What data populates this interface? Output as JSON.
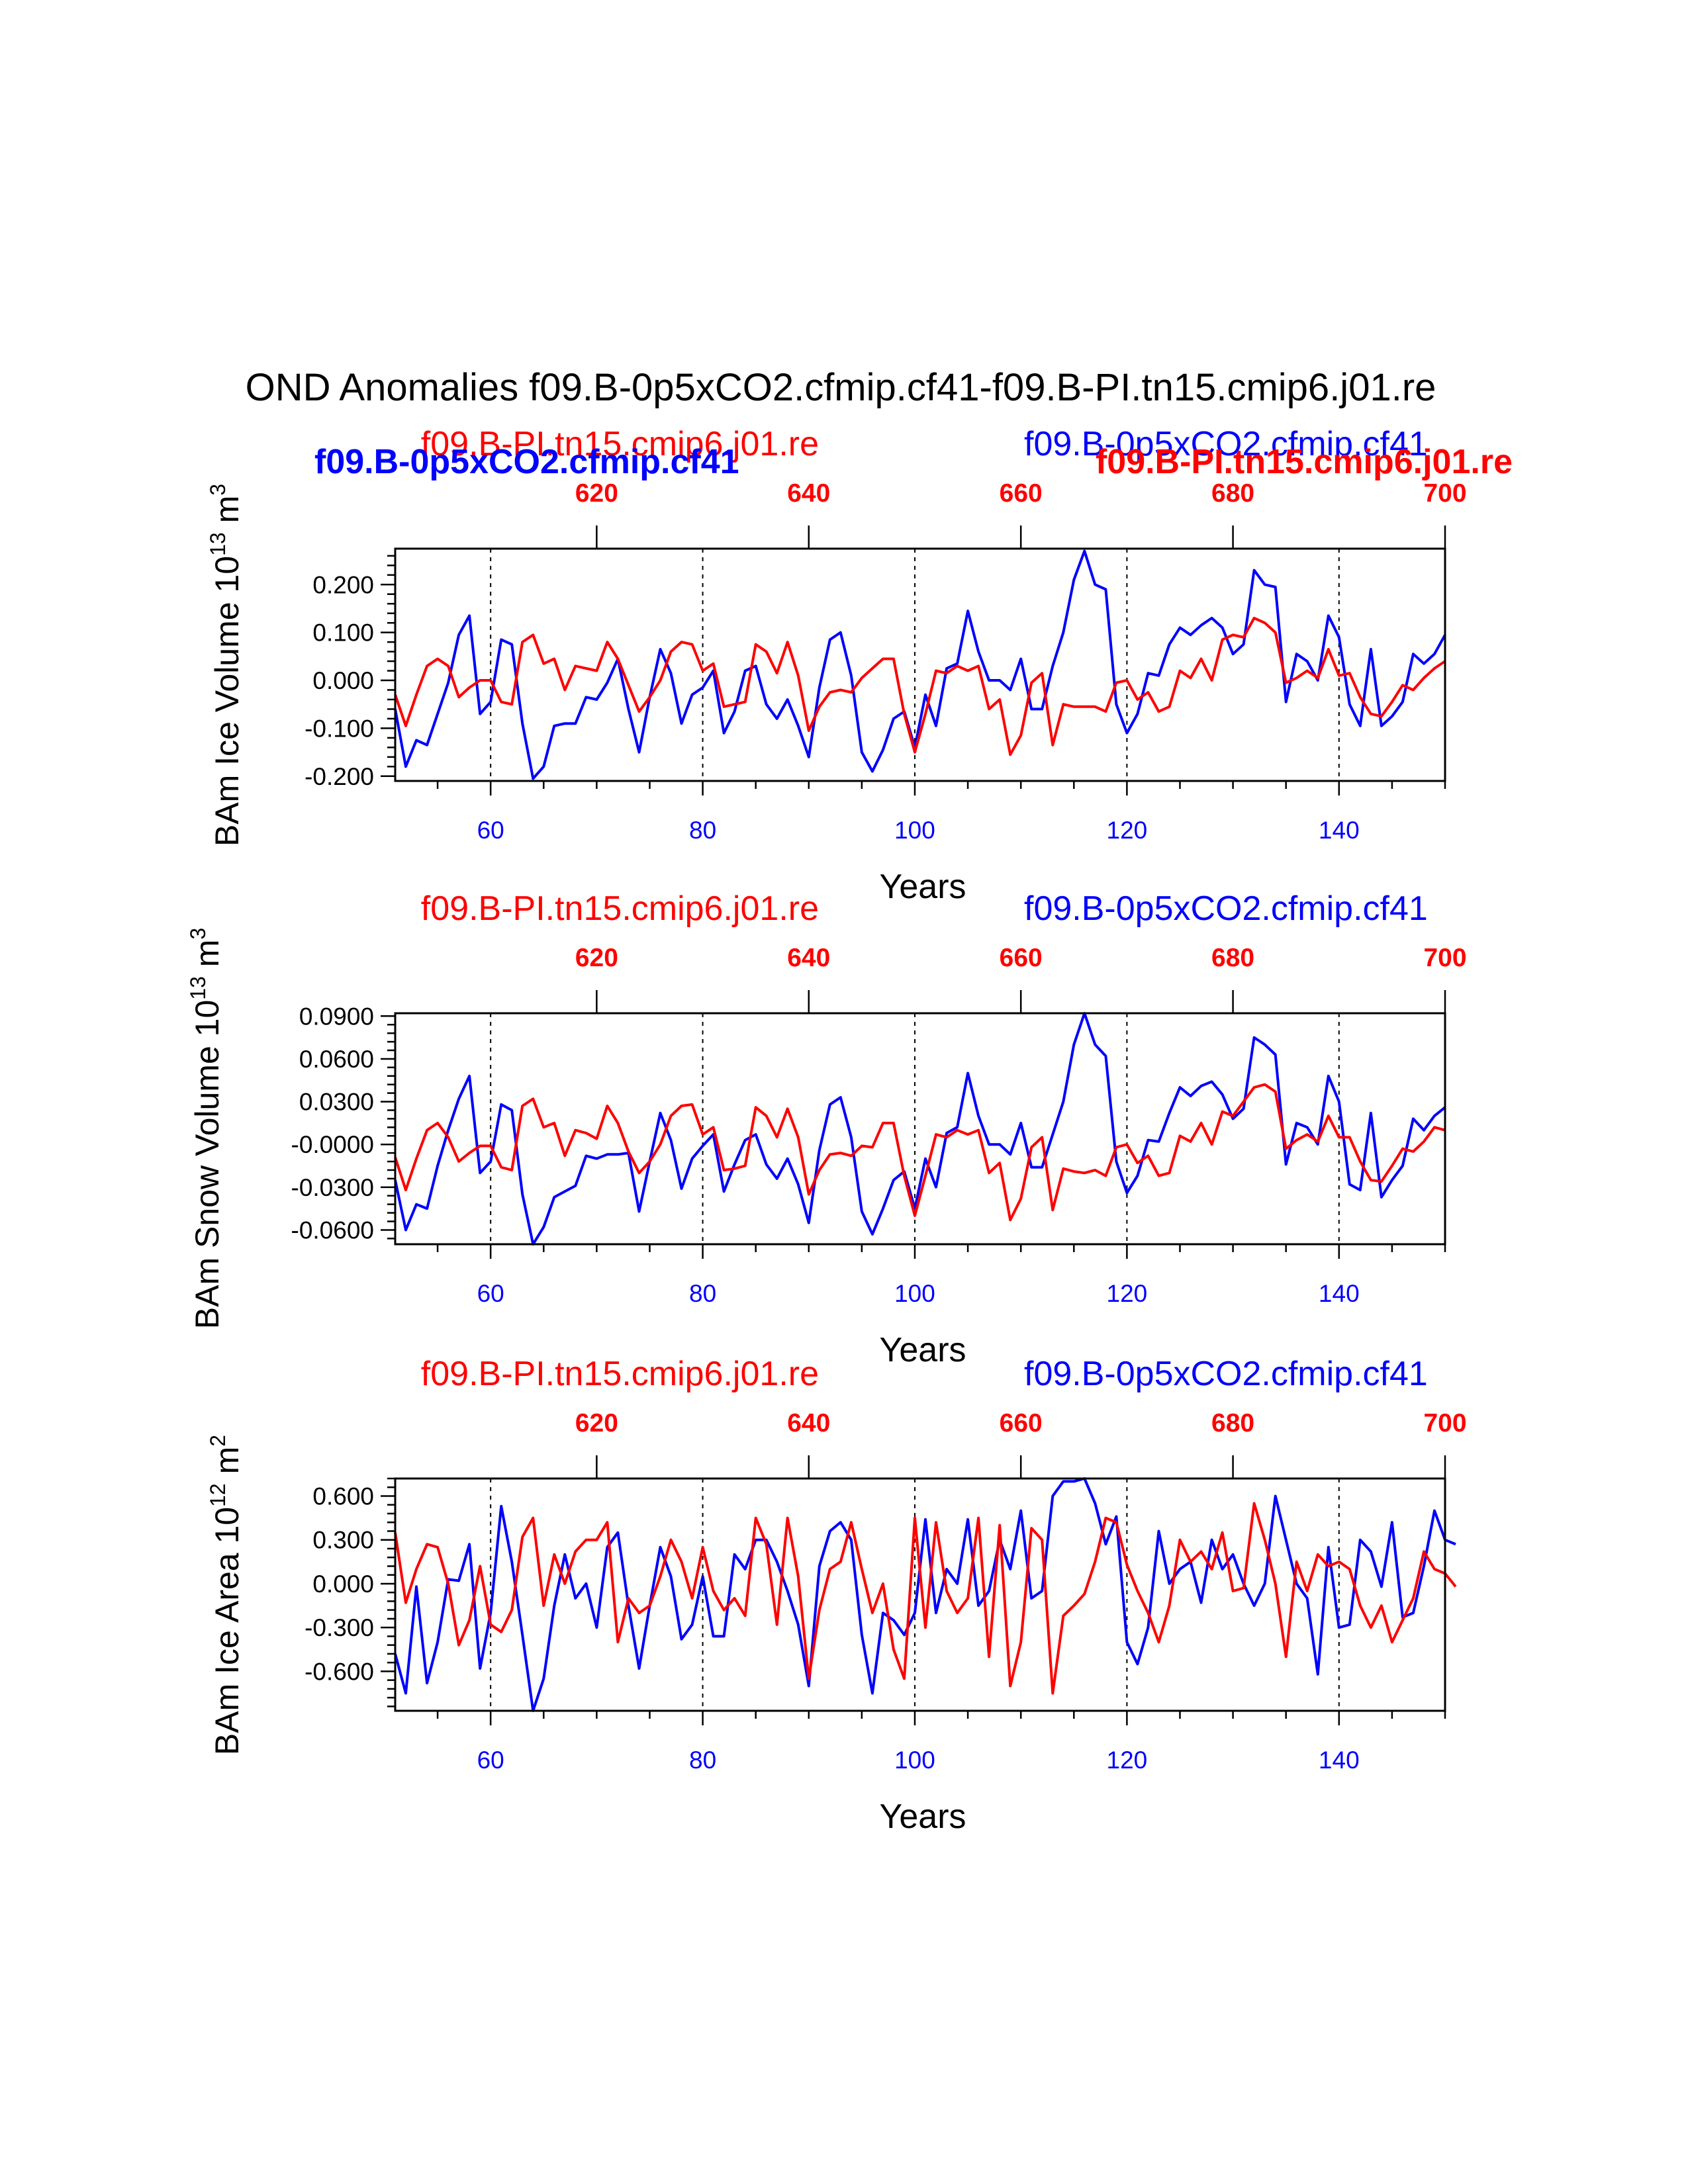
{
  "title": "OND Anomalies f09.B-0p5xCO2.cfmip.cf41-f09.B-PI.tn15.cmip6.j01.re",
  "legend": {
    "red_name": "f09.B-PI.tn15.cmip6.j01.re",
    "blue_name": "f09.B-0p5xCO2.cfmip.cf41"
  },
  "overlay_labels": {
    "blue": "f09.B-0p5xCO2.cfmip.cf41",
    "red": "f09.B-PI.tn15.cmip6.j01.re"
  },
  "colors": {
    "blue": "#0000ff",
    "red": "#ff0000",
    "axis": "#000000"
  },
  "chart_data": [
    {
      "type": "line",
      "ylabel": "BAm Ice Volume 10",
      "ylabel_exp": "13",
      "ylabel_unit": " m",
      "ylabel_unit_exp": "3",
      "xlabel": "Years",
      "xlim": [
        51,
        150
      ],
      "top_xlim": [
        601,
        700
      ],
      "ylim": [
        -0.21,
        0.275
      ],
      "yticks": [
        -0.2,
        -0.1,
        0.0,
        0.1,
        0.2
      ],
      "ytick_labels": [
        "-0.200",
        "-0.100",
        "0.000",
        "0.100",
        "0.200"
      ],
      "xticks": [
        60,
        80,
        100,
        120,
        140
      ],
      "xtick_labels": [
        "60",
        "80",
        "100",
        "120",
        "140"
      ],
      "top_xticks": [
        620,
        640,
        660,
        680,
        700
      ],
      "top_xtick_labels": [
        "620",
        "640",
        "660",
        "680",
        "700"
      ],
      "series": [
        {
          "name": "f09.B-0p5xCO2.cfmip.cf41",
          "color": "#0000ff",
          "x_start": 51,
          "values": [
            -0.06,
            -0.18,
            -0.125,
            -0.135,
            -0.07,
            -0.005,
            0.095,
            0.135,
            -0.07,
            -0.045,
            0.085,
            0.075,
            -0.09,
            -0.205,
            -0.18,
            -0.095,
            -0.09,
            -0.09,
            -0.035,
            -0.04,
            -0.005,
            0.045,
            -0.06,
            -0.15,
            -0.035,
            0.065,
            0.015,
            -0.09,
            -0.03,
            -0.015,
            0.02,
            -0.11,
            -0.065,
            0.02,
            0.03,
            -0.05,
            -0.08,
            -0.04,
            -0.095,
            -0.16,
            -0.015,
            0.085,
            0.1,
            0.01,
            -0.15,
            -0.19,
            -0.145,
            -0.08,
            -0.065,
            -0.14,
            -0.03,
            -0.095,
            0.025,
            0.035,
            0.145,
            0.06,
            0.0,
            0.0,
            -0.02,
            0.045,
            -0.06,
            -0.06,
            0.03,
            0.1,
            0.21,
            0.27,
            0.2,
            0.19,
            -0.05,
            -0.11,
            -0.07,
            0.015,
            0.01,
            0.075,
            0.11,
            0.095,
            0.115,
            0.13,
            0.11,
            0.055,
            0.075,
            0.23,
            0.2,
            0.195,
            -0.045,
            0.055,
            0.04,
            0.0,
            0.135,
            0.09,
            -0.05,
            -0.095,
            0.065,
            -0.095,
            -0.075,
            -0.045,
            0.055,
            0.035,
            0.055,
            0.095
          ]
        },
        {
          "name": "f09.B-PI.tn15.cmip6.j01.re",
          "color": "#ff0000",
          "x_start": 51,
          "values": [
            -0.03,
            -0.095,
            -0.03,
            0.03,
            0.045,
            0.03,
            -0.035,
            -0.015,
            0.0,
            0.0,
            -0.045,
            -0.05,
            0.08,
            0.095,
            0.035,
            0.045,
            -0.02,
            0.03,
            0.025,
            0.02,
            0.08,
            0.045,
            -0.01,
            -0.065,
            -0.035,
            0.0,
            0.06,
            0.08,
            0.075,
            0.02,
            0.035,
            -0.055,
            -0.05,
            -0.045,
            0.075,
            0.06,
            0.015,
            0.08,
            0.01,
            -0.105,
            -0.055,
            -0.025,
            -0.02,
            -0.025,
            0.005,
            0.025,
            0.045,
            0.045,
            -0.07,
            -0.15,
            -0.07,
            0.02,
            0.015,
            0.03,
            0.02,
            0.03,
            -0.06,
            -0.04,
            -0.155,
            -0.115,
            -0.005,
            0.015,
            -0.135,
            -0.05,
            -0.055,
            -0.055,
            -0.055,
            -0.065,
            -0.005,
            0.0,
            -0.04,
            -0.025,
            -0.065,
            -0.055,
            0.02,
            0.005,
            0.045,
            0.0,
            0.085,
            0.095,
            0.09,
            0.13,
            0.12,
            0.1,
            -0.005,
            0.005,
            0.02,
            0.005,
            0.065,
            0.01,
            0.015,
            -0.035,
            -0.07,
            -0.075,
            -0.045,
            -0.01,
            -0.02,
            0.005,
            0.025,
            0.04
          ]
        }
      ]
    },
    {
      "type": "line",
      "ylabel": "BAm Snow Volume 10",
      "ylabel_exp": "13",
      "ylabel_unit": " m",
      "ylabel_unit_exp": "3",
      "xlabel": "Years",
      "xlim": [
        51,
        150
      ],
      "top_xlim": [
        601,
        700
      ],
      "ylim": [
        -0.07,
        0.092
      ],
      "yticks": [
        -0.06,
        -0.03,
        0.0,
        0.03,
        0.06,
        0.09
      ],
      "ytick_labels": [
        "-0.0600",
        "-0.0300",
        "-0.0000",
        "0.0300",
        "0.0600",
        "0.0900"
      ],
      "xticks": [
        60,
        80,
        100,
        120,
        140
      ],
      "xtick_labels": [
        "60",
        "80",
        "100",
        "120",
        "140"
      ],
      "top_xticks": [
        620,
        640,
        660,
        680,
        700
      ],
      "top_xtick_labels": [
        "620",
        "640",
        "660",
        "680",
        "700"
      ],
      "series": [
        {
          "name": "f09.B-0p5xCO2.cfmip.cf41",
          "color": "#0000ff",
          "x_start": 51,
          "values": [
            -0.025,
            -0.06,
            -0.042,
            -0.045,
            -0.015,
            0.01,
            0.032,
            0.048,
            -0.02,
            -0.012,
            0.028,
            0.024,
            -0.035,
            -0.07,
            -0.058,
            -0.037,
            -0.033,
            -0.029,
            -0.008,
            -0.01,
            -0.007,
            -0.007,
            -0.006,
            -0.047,
            -0.012,
            0.022,
            0.003,
            -0.031,
            -0.01,
            -0.001,
            0.007,
            -0.033,
            -0.014,
            0.003,
            0.007,
            -0.014,
            -0.024,
            -0.01,
            -0.028,
            -0.055,
            -0.004,
            0.028,
            0.033,
            0.005,
            -0.047,
            -0.063,
            -0.045,
            -0.025,
            -0.019,
            -0.045,
            -0.01,
            -0.03,
            0.008,
            0.012,
            0.05,
            0.02,
            0.0,
            0.0,
            -0.007,
            0.015,
            -0.016,
            -0.016,
            0.007,
            0.03,
            0.07,
            0.092,
            0.07,
            0.062,
            -0.012,
            -0.034,
            -0.022,
            0.003,
            0.002,
            0.022,
            0.04,
            0.034,
            0.041,
            0.044,
            0.035,
            0.018,
            0.025,
            0.075,
            0.07,
            0.063,
            -0.014,
            0.015,
            0.012,
            0.0,
            0.048,
            0.03,
            -0.028,
            -0.032,
            0.022,
            -0.037,
            -0.025,
            -0.015,
            0.018,
            0.01,
            0.02,
            0.026
          ]
        },
        {
          "name": "f09.B-PI.tn15.cmip6.j01.re",
          "color": "#ff0000",
          "x_start": 51,
          "values": [
            -0.009,
            -0.032,
            -0.01,
            0.01,
            0.015,
            0.005,
            -0.012,
            -0.006,
            -0.001,
            -0.001,
            -0.016,
            -0.018,
            0.027,
            0.032,
            0.012,
            0.015,
            -0.008,
            0.01,
            0.008,
            0.004,
            0.027,
            0.015,
            -0.005,
            -0.02,
            -0.012,
            0.0,
            0.02,
            0.027,
            0.028,
            0.007,
            0.012,
            -0.018,
            -0.017,
            -0.015,
            0.026,
            0.02,
            0.005,
            0.025,
            0.005,
            -0.035,
            -0.018,
            -0.007,
            -0.006,
            -0.008,
            -0.001,
            -0.002,
            0.015,
            0.015,
            -0.022,
            -0.05,
            -0.022,
            0.007,
            0.005,
            0.01,
            0.007,
            0.01,
            -0.02,
            -0.013,
            -0.053,
            -0.038,
            -0.002,
            0.005,
            -0.046,
            -0.017,
            -0.019,
            -0.02,
            -0.018,
            -0.022,
            -0.002,
            0.0,
            -0.013,
            -0.008,
            -0.022,
            -0.02,
            0.006,
            0.002,
            0.015,
            0.0,
            0.023,
            0.02,
            0.03,
            0.04,
            0.042,
            0.037,
            -0.003,
            0.003,
            0.007,
            0.002,
            0.02,
            0.005,
            0.005,
            -0.012,
            -0.025,
            -0.026,
            -0.015,
            -0.003,
            -0.005,
            0.002,
            0.012,
            0.01
          ]
        }
      ]
    },
    {
      "type": "line",
      "ylabel": "BAm Ice Area 10",
      "ylabel_exp": "12",
      "ylabel_unit": " m",
      "ylabel_unit_exp": "2",
      "xlabel": "Years",
      "xlim": [
        51,
        150
      ],
      "top_xlim": [
        601,
        700
      ],
      "ylim": [
        -0.87,
        0.72
      ],
      "yticks": [
        -0.6,
        -0.3,
        0.0,
        0.3,
        0.6
      ],
      "ytick_labels": [
        "-0.600",
        "-0.300",
        "0.000",
        "0.300",
        "0.600"
      ],
      "xticks": [
        60,
        80,
        100,
        120,
        140
      ],
      "xtick_labels": [
        "60",
        "80",
        "100",
        "120",
        "140"
      ],
      "top_xticks": [
        620,
        640,
        660,
        680,
        700
      ],
      "top_xtick_labels": [
        "620",
        "640",
        "660",
        "680",
        "700"
      ],
      "series": [
        {
          "name": "f09.B-0p5xCO2.cfmip.cf41",
          "color": "#0000ff",
          "x_start": 51,
          "values": [
            -0.48,
            -0.75,
            -0.02,
            -0.68,
            -0.4,
            0.03,
            0.02,
            0.27,
            -0.58,
            -0.2,
            0.53,
            0.15,
            -0.35,
            -0.87,
            -0.65,
            -0.15,
            0.2,
            -0.1,
            0.0,
            -0.3,
            0.25,
            0.35,
            -0.15,
            -0.58,
            -0.15,
            0.25,
            0.05,
            -0.38,
            -0.28,
            0.05,
            -0.36,
            -0.36,
            0.2,
            0.1,
            0.3,
            0.3,
            0.15,
            -0.05,
            -0.28,
            -0.7,
            0.12,
            0.36,
            0.42,
            0.3,
            -0.35,
            -0.75,
            -0.2,
            -0.25,
            -0.35,
            -0.2,
            0.44,
            -0.2,
            0.1,
            0.0,
            0.44,
            -0.15,
            -0.05,
            0.3,
            0.1,
            0.5,
            -0.1,
            -0.05,
            0.6,
            0.7,
            0.7,
            0.72,
            0.55,
            0.27,
            0.46,
            -0.4,
            -0.55,
            -0.3,
            0.36,
            0.0,
            0.1,
            0.15,
            -0.13,
            0.3,
            0.1,
            0.2,
            0.0,
            -0.15,
            0.0,
            0.6,
            0.3,
            0.0,
            -0.1,
            -0.62,
            0.25,
            -0.3,
            -0.28,
            0.3,
            0.22,
            -0.02,
            0.42,
            -0.23,
            -0.2,
            0.12,
            0.5,
            0.3,
            0.27
          ]
        },
        {
          "name": "f09.B-PI.tn15.cmip6.j01.re",
          "color": "#ff0000",
          "x_start": 51,
          "values": [
            0.35,
            -0.13,
            0.1,
            0.27,
            0.25,
            0.0,
            -0.42,
            -0.25,
            0.12,
            -0.28,
            -0.33,
            -0.18,
            0.32,
            0.45,
            -0.15,
            0.2,
            0.0,
            0.22,
            0.3,
            0.3,
            0.42,
            -0.4,
            -0.1,
            -0.2,
            -0.15,
            0.05,
            0.3,
            0.15,
            -0.1,
            0.25,
            -0.05,
            -0.18,
            -0.1,
            -0.22,
            0.45,
            0.27,
            -0.28,
            0.45,
            0.05,
            -0.65,
            -0.18,
            0.1,
            0.15,
            0.42,
            0.1,
            -0.2,
            0.0,
            -0.45,
            -0.65,
            0.45,
            -0.3,
            0.42,
            -0.05,
            -0.2,
            -0.1,
            0.45,
            -0.5,
            0.4,
            -0.7,
            -0.4,
            0.38,
            0.3,
            -0.75,
            -0.22,
            -0.15,
            -0.07,
            0.15,
            0.45,
            0.42,
            0.13,
            -0.05,
            -0.2,
            -0.4,
            -0.15,
            0.3,
            0.15,
            0.22,
            0.1,
            0.35,
            -0.05,
            -0.03,
            0.55,
            0.3,
            0.0,
            -0.5,
            0.15,
            -0.05,
            0.2,
            0.12,
            0.15,
            0.1,
            -0.15,
            -0.3,
            -0.15,
            -0.4,
            -0.25,
            -0.1,
            0.22,
            0.1,
            0.07,
            -0.02
          ]
        }
      ]
    }
  ]
}
